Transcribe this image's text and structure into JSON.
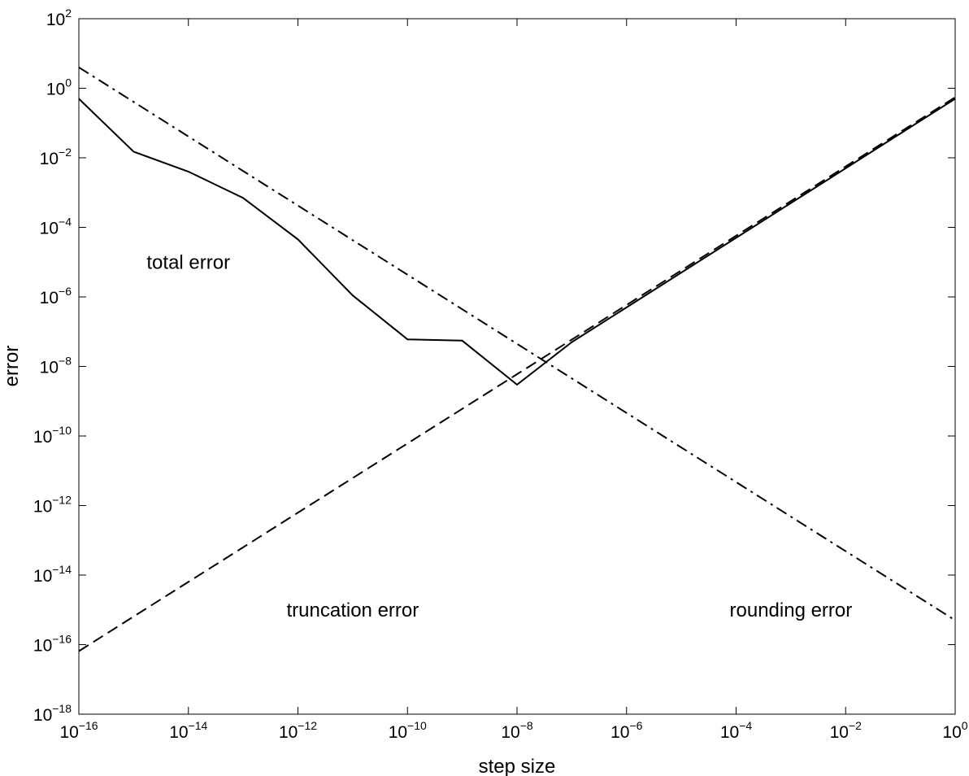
{
  "chart_data": {
    "type": "line",
    "xlabel": "step size",
    "ylabel": "error",
    "xscale": "log",
    "yscale": "log",
    "xlim": [
      1e-16,
      1
    ],
    "ylim": [
      1e-18,
      100
    ],
    "grid": false,
    "x_ticks": [
      {
        "base": "10",
        "exp": "−16",
        "value": 1e-16
      },
      {
        "base": "10",
        "exp": "−14",
        "value": 1e-14
      },
      {
        "base": "10",
        "exp": "−12",
        "value": 1e-12
      },
      {
        "base": "10",
        "exp": "−10",
        "value": 1e-10
      },
      {
        "base": "10",
        "exp": "−8",
        "value": 1e-08
      },
      {
        "base": "10",
        "exp": "−6",
        "value": 1e-06
      },
      {
        "base": "10",
        "exp": "−4",
        "value": 0.0001
      },
      {
        "base": "10",
        "exp": "−2",
        "value": 0.01
      },
      {
        "base": "10",
        "exp": "0",
        "value": 1
      }
    ],
    "y_ticks": [
      {
        "base": "10",
        "exp": "2",
        "value": 100
      },
      {
        "base": "10",
        "exp": "0",
        "value": 1
      },
      {
        "base": "10",
        "exp": "−2",
        "value": 0.01
      },
      {
        "base": "10",
        "exp": "−4",
        "value": 0.0001
      },
      {
        "base": "10",
        "exp": "−6",
        "value": 1e-06
      },
      {
        "base": "10",
        "exp": "−8",
        "value": 1e-08
      },
      {
        "base": "10",
        "exp": "−10",
        "value": 1e-10
      },
      {
        "base": "10",
        "exp": "−12",
        "value": 1e-12
      },
      {
        "base": "10",
        "exp": "−14",
        "value": 1e-14
      },
      {
        "base": "10",
        "exp": "−16",
        "value": 1e-16
      },
      {
        "base": "10",
        "exp": "−18",
        "value": 1e-18
      }
    ],
    "series": [
      {
        "style": "solid",
        "x": [
          1e-16,
          1e-15,
          1e-14,
          1e-13,
          1e-12,
          1e-11,
          1e-10,
          1e-09,
          1e-08,
          1e-07,
          1e-06,
          1e-05,
          0.0001,
          0.001,
          0.01,
          0.1,
          1
        ],
        "y": [
          0.5,
          0.015,
          0.004,
          0.0007,
          4.5e-05,
          1.1e-06,
          6e-08,
          5.5e-08,
          3e-09,
          5e-08,
          5e-07,
          5e-06,
          5e-05,
          0.0005,
          0.005,
          0.05,
          0.5
        ]
      },
      {
        "style": "dashed",
        "x": [
          1e-16,
          1
        ],
        "y": [
          6.5e-17,
          0.55
        ]
      },
      {
        "style": "dashdot",
        "x": [
          1e-16,
          1
        ],
        "y": [
          4,
          5e-16
        ]
      }
    ],
    "annotations": [
      {
        "text": "total error",
        "x": 1e-14,
        "y": 1e-05
      },
      {
        "text": "truncation error",
        "x": 1e-11,
        "y": 1e-15
      },
      {
        "text": "rounding error",
        "x": 0.001,
        "y": 1e-15
      }
    ]
  }
}
